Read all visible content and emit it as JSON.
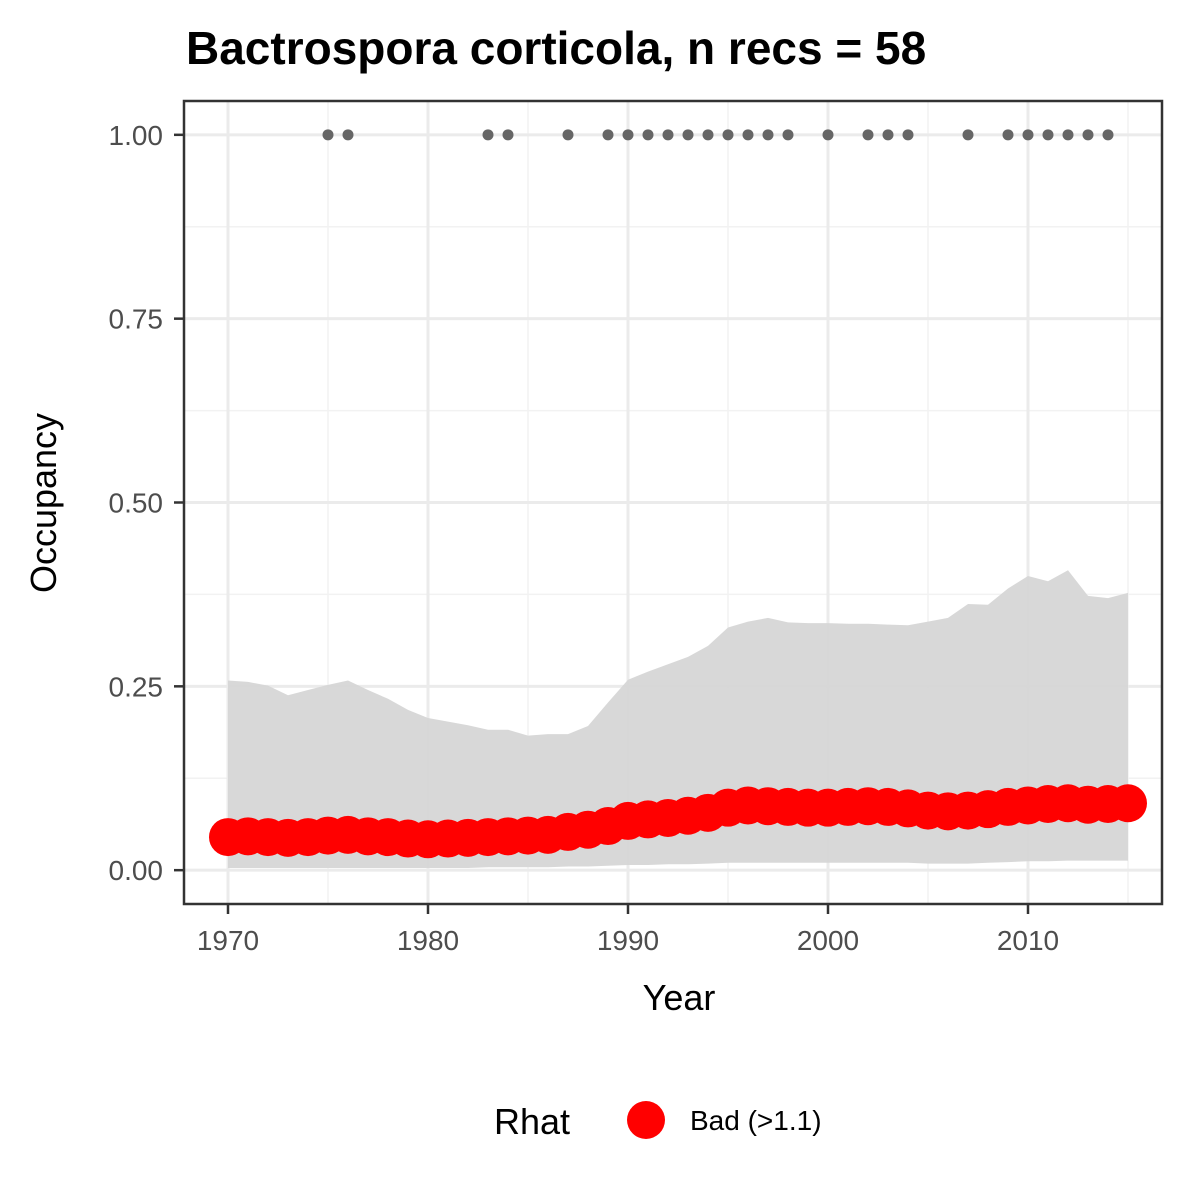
{
  "chart_data": {
    "type": "line",
    "title": "Bactrospora corticola, n recs = 58",
    "xlabel": "Year",
    "ylabel": "Occupancy",
    "xlim": [
      1967.8,
      2016.7
    ],
    "ylim": [
      -0.046,
      1.046
    ],
    "x_ticks": [
      1970,
      1980,
      1990,
      2000,
      2010
    ],
    "x_tick_labels": [
      "1970",
      "1980",
      "1990",
      "2000",
      "2010"
    ],
    "y_ticks": [
      0,
      0.25,
      0.5,
      0.75,
      1
    ],
    "y_tick_labels": [
      "0.00",
      "0.25",
      "0.50",
      "0.75",
      "1.00"
    ],
    "grid": true,
    "legend": {
      "position": "bottom",
      "title": "Rhat",
      "entries": [
        {
          "label": "Bad (>1.1)",
          "color": "#ff0000"
        }
      ]
    },
    "x": [
      1970,
      1971,
      1972,
      1973,
      1974,
      1975,
      1976,
      1977,
      1978,
      1979,
      1980,
      1981,
      1982,
      1983,
      1984,
      1985,
      1986,
      1987,
      1988,
      1989,
      1990,
      1991,
      1992,
      1993,
      1994,
      1995,
      1996,
      1997,
      1998,
      1999,
      2000,
      2001,
      2002,
      2003,
      2004,
      2005,
      2006,
      2007,
      2008,
      2009,
      2010,
      2011,
      2012,
      2013,
      2014,
      2015
    ],
    "series": [
      {
        "role": "mean",
        "color": "#ff0000",
        "values": [
          0.045,
          0.046,
          0.045,
          0.044,
          0.045,
          0.047,
          0.048,
          0.046,
          0.045,
          0.043,
          0.042,
          0.043,
          0.044,
          0.045,
          0.046,
          0.047,
          0.048,
          0.052,
          0.055,
          0.06,
          0.067,
          0.069,
          0.071,
          0.074,
          0.078,
          0.085,
          0.088,
          0.087,
          0.086,
          0.085,
          0.085,
          0.086,
          0.087,
          0.086,
          0.084,
          0.081,
          0.08,
          0.081,
          0.083,
          0.086,
          0.088,
          0.09,
          0.091,
          0.089,
          0.09,
          0.091
        ]
      },
      {
        "role": "credible-interval",
        "color": "#d6d6d6",
        "upper": [
          0.258,
          0.256,
          0.251,
          0.238,
          0.245,
          0.252,
          0.258,
          0.245,
          0.233,
          0.218,
          0.207,
          0.202,
          0.197,
          0.191,
          0.191,
          0.183,
          0.185,
          0.185,
          0.196,
          0.228,
          0.259,
          0.27,
          0.28,
          0.29,
          0.305,
          0.33,
          0.338,
          0.343,
          0.337,
          0.336,
          0.336,
          0.335,
          0.335,
          0.334,
          0.333,
          0.338,
          0.343,
          0.362,
          0.361,
          0.383,
          0.4,
          0.393,
          0.408,
          0.373,
          0.37,
          0.377
        ],
        "lower": [
          0.003,
          0.003,
          0.003,
          0.003,
          0.003,
          0.003,
          0.003,
          0.003,
          0.003,
          0.003,
          0.003,
          0.003,
          0.003,
          0.004,
          0.004,
          0.004,
          0.004,
          0.005,
          0.005,
          0.006,
          0.007,
          0.007,
          0.008,
          0.008,
          0.009,
          0.01,
          0.01,
          0.01,
          0.01,
          0.01,
          0.01,
          0.01,
          0.01,
          0.01,
          0.01,
          0.009,
          0.009,
          0.009,
          0.01,
          0.011,
          0.012,
          0.012,
          0.013,
          0.013,
          0.013,
          0.013
        ]
      },
      {
        "role": "records",
        "color": "#666666",
        "x": [
          1975,
          1976,
          1983,
          1984,
          1987,
          1989,
          1990,
          1991,
          1992,
          1993,
          1994,
          1995,
          1996,
          1997,
          1998,
          2000,
          2002,
          2003,
          2004,
          2007,
          2009,
          2010,
          2011,
          2012,
          2013,
          2014
        ],
        "values": [
          1,
          1,
          1,
          1,
          1,
          1,
          1,
          1,
          1,
          1,
          1,
          1,
          1,
          1,
          1,
          1,
          1,
          1,
          1,
          1,
          1,
          1,
          1,
          1,
          1,
          1
        ]
      }
    ]
  }
}
